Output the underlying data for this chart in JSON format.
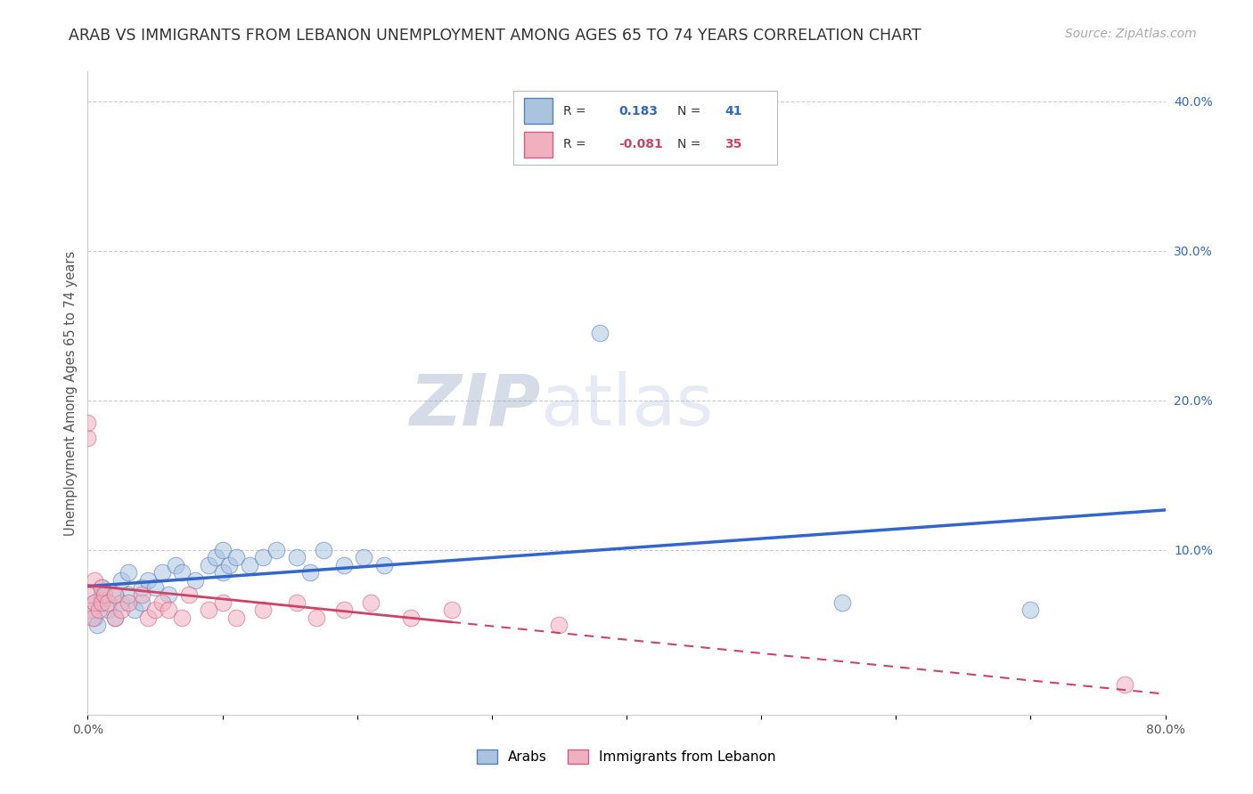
{
  "title": "ARAB VS IMMIGRANTS FROM LEBANON UNEMPLOYMENT AMONG AGES 65 TO 74 YEARS CORRELATION CHART",
  "source": "Source: ZipAtlas.com",
  "ylabel": "Unemployment Among Ages 65 to 74 years",
  "xlim": [
    0.0,
    0.8
  ],
  "ylim": [
    -0.01,
    0.42
  ],
  "x_ticks": [
    0.0,
    0.1,
    0.2,
    0.3,
    0.4,
    0.5,
    0.6,
    0.7,
    0.8
  ],
  "x_tick_labels": [
    "0.0%",
    "",
    "",
    "",
    "",
    "",
    "",
    "",
    "80.0%"
  ],
  "y_ticks_right": [
    0.1,
    0.2,
    0.3,
    0.4
  ],
  "y_tick_labels_right": [
    "10.0%",
    "20.0%",
    "30.0%",
    "40.0%"
  ],
  "arab_color": "#aac4e0",
  "arab_edge_color": "#5580bb",
  "lebanon_color": "#f0b0c0",
  "lebanon_edge_color": "#d06080",
  "trend_arab_color": "#3366cc",
  "trend_lebanon_color": "#cc4466",
  "legend_R_arab": "0.183",
  "legend_N_arab": "41",
  "legend_R_lebanon": "-0.081",
  "legend_N_lebanon": "35",
  "legend_label_arab": "Arabs",
  "legend_label_lebanon": "Immigrants from Lebanon",
  "watermark_zip": "ZIP",
  "watermark_atlas": "atlas",
  "arab_x": [
    0.005,
    0.005,
    0.007,
    0.01,
    0.01,
    0.01,
    0.015,
    0.02,
    0.02,
    0.025,
    0.025,
    0.03,
    0.03,
    0.035,
    0.04,
    0.04,
    0.045,
    0.05,
    0.055,
    0.06,
    0.065,
    0.07,
    0.08,
    0.09,
    0.095,
    0.1,
    0.1,
    0.105,
    0.11,
    0.12,
    0.13,
    0.14,
    0.155,
    0.165,
    0.175,
    0.19,
    0.205,
    0.22,
    0.38,
    0.56,
    0.7
  ],
  "arab_y": [
    0.055,
    0.065,
    0.05,
    0.07,
    0.065,
    0.075,
    0.06,
    0.055,
    0.07,
    0.065,
    0.08,
    0.07,
    0.085,
    0.06,
    0.065,
    0.075,
    0.08,
    0.075,
    0.085,
    0.07,
    0.09,
    0.085,
    0.08,
    0.09,
    0.095,
    0.085,
    0.1,
    0.09,
    0.095,
    0.09,
    0.095,
    0.1,
    0.095,
    0.085,
    0.1,
    0.09,
    0.095,
    0.09,
    0.245,
    0.065,
    0.06
  ],
  "lebanon_x": [
    0.0,
    0.0,
    0.002,
    0.002,
    0.004,
    0.005,
    0.005,
    0.008,
    0.01,
    0.01,
    0.012,
    0.015,
    0.02,
    0.02,
    0.025,
    0.03,
    0.04,
    0.045,
    0.05,
    0.055,
    0.06,
    0.07,
    0.075,
    0.09,
    0.1,
    0.11,
    0.13,
    0.155,
    0.17,
    0.19,
    0.21,
    0.24,
    0.27,
    0.35,
    0.77
  ],
  "lebanon_y": [
    0.175,
    0.185,
    0.06,
    0.07,
    0.055,
    0.065,
    0.08,
    0.06,
    0.065,
    0.075,
    0.07,
    0.065,
    0.055,
    0.07,
    0.06,
    0.065,
    0.07,
    0.055,
    0.06,
    0.065,
    0.06,
    0.055,
    0.07,
    0.06,
    0.065,
    0.055,
    0.06,
    0.065,
    0.055,
    0.06,
    0.065,
    0.055,
    0.06,
    0.05,
    0.01
  ],
  "background_color": "#ffffff",
  "grid_color": "#cccccc",
  "title_fontsize": 12.5,
  "source_fontsize": 10,
  "axis_label_fontsize": 10.5,
  "tick_fontsize": 10,
  "marker_size": 180,
  "marker_alpha": 0.55
}
